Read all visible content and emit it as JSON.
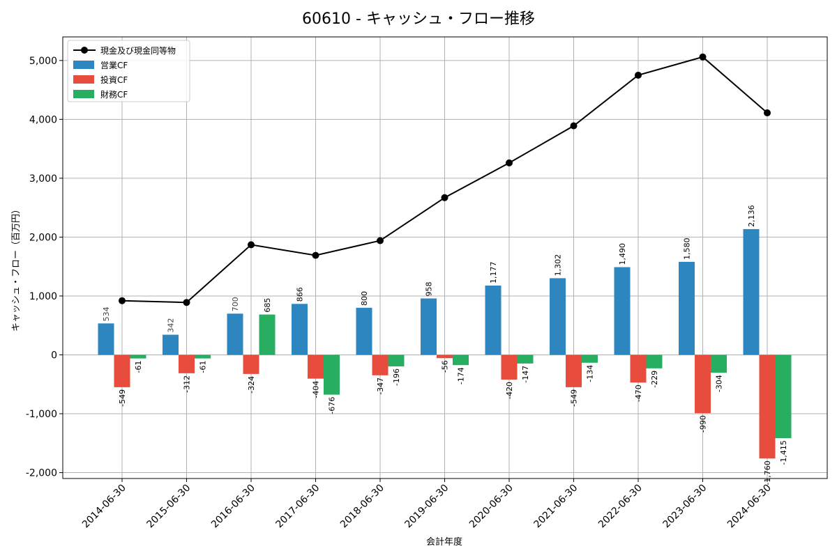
{
  "chart_data": {
    "type": "bar",
    "title": "60610 - キャッシュ・フロー推移",
    "xlabel": "会計年度",
    "ylabel": "キャッシュ・フロー（百万円）",
    "categories": [
      "2014-06-30",
      "2015-06-30",
      "2016-06-30",
      "2017-06-30",
      "2018-06-30",
      "2019-06-30",
      "2020-06-30",
      "2021-06-30",
      "2022-06-30",
      "2023-06-30",
      "2024-06-30"
    ],
    "ylim": [
      -2100,
      5400
    ],
    "yticks": [
      -2000,
      -1000,
      0,
      1000,
      2000,
      3000,
      4000,
      5000
    ],
    "ytick_labels": [
      "-2,000",
      "-1,000",
      "0",
      "1,000",
      "2,000",
      "3,000",
      "4,000",
      "5,000"
    ],
    "grid": true,
    "legend_position": "top-left",
    "series": [
      {
        "name": "営業CF",
        "kind": "bar",
        "color": "#2e86c1",
        "values": [
          534,
          342,
          700,
          866,
          800,
          958,
          1177,
          1302,
          1490,
          1580,
          2136
        ],
        "labels": [
          "534",
          "342",
          "700",
          "866",
          "800",
          "958",
          "1,177",
          "1,302",
          "1,490",
          "1,580",
          "2,136"
        ]
      },
      {
        "name": "投資CF",
        "kind": "bar",
        "color": "#e74c3c",
        "values": [
          -549,
          -312,
          -324,
          -404,
          -347,
          -56,
          -420,
          -549,
          -470,
          -990,
          -1760
        ],
        "labels": [
          "-549",
          "-312",
          "-324",
          "-404",
          "-347",
          "-56",
          "-420",
          "-549",
          "-470",
          "-990",
          "-1,760"
        ]
      },
      {
        "name": "財務CF",
        "kind": "bar",
        "color": "#27ae60",
        "values": [
          -61,
          -61,
          685,
          -676,
          -196,
          -174,
          -147,
          -134,
          -229,
          -304,
          -1415
        ],
        "labels": [
          "-61",
          "-61",
          "685",
          "-676",
          "-196",
          "-174",
          "-147",
          "-134",
          "-229",
          "-304",
          "-1,415"
        ]
      },
      {
        "name": "現金及び現金同等物",
        "kind": "line",
        "color": "#000000",
        "values": [
          920,
          890,
          1870,
          1690,
          1940,
          2670,
          3260,
          3890,
          4750,
          5060,
          4110
        ]
      }
    ]
  }
}
